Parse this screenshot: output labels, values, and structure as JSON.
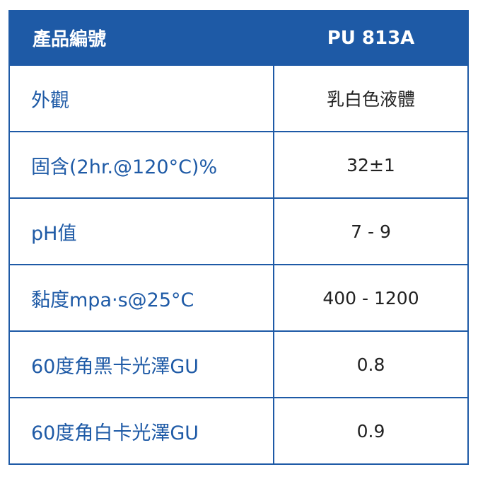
{
  "table": {
    "header": [
      "產品編號",
      "PU 813A"
    ],
    "rows": [
      [
        "外觀",
        "乳白色液體"
      ],
      [
        "固含(2hr.@120°C)%",
        "32±1"
      ],
      [
        "pH值",
        "7 - 9"
      ],
      [
        "黏度mpa‧s@25°C",
        "400 - 1200"
      ],
      [
        "60度角黑卡光澤GU",
        "0.8"
      ],
      [
        "60度角白卡光澤GU",
        "0.9"
      ]
    ]
  }
}
